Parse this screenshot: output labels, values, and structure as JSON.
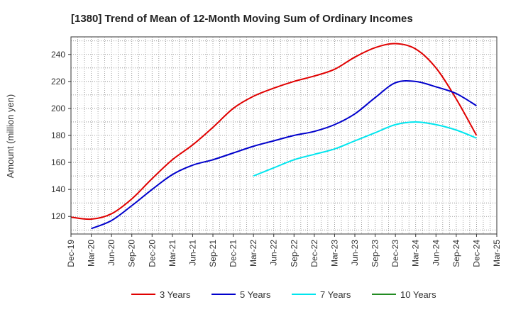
{
  "chart_data": {
    "type": "line",
    "title": "[1380]  Trend of Mean of 12-Month Moving Sum of Ordinary Incomes",
    "xlabel": "",
    "ylabel": "Amount (million yen)",
    "x_ticks": [
      "Dec-19",
      "Mar-20",
      "Jun-20",
      "Sep-20",
      "Dec-20",
      "Mar-21",
      "Jun-21",
      "Sep-21",
      "Dec-21",
      "Mar-22",
      "Jun-22",
      "Sep-22",
      "Dec-22",
      "Mar-23",
      "Jun-23",
      "Sep-23",
      "Dec-23",
      "Mar-24",
      "Jun-24",
      "Sep-24",
      "Dec-24",
      "Mar-25"
    ],
    "y_ticks": [
      120,
      140,
      160,
      180,
      200,
      220,
      240
    ],
    "ylim": [
      107,
      253
    ],
    "grid": true,
    "legend_position": "bottom",
    "series": [
      {
        "name": "3 Years",
        "color": "#e00000",
        "values": [
          119.5,
          118,
          122,
          133,
          148,
          162,
          173,
          186,
          200,
          209,
          215,
          220,
          224,
          229,
          238,
          245,
          248,
          244,
          230,
          207,
          180,
          null
        ]
      },
      {
        "name": "5 Years",
        "color": "#0000cc",
        "values": [
          null,
          111,
          117,
          128,
          140,
          151,
          158,
          162,
          167,
          172,
          176,
          180,
          183,
          188,
          196,
          208,
          219,
          220,
          216,
          211,
          202,
          null
        ]
      },
      {
        "name": "7 Years",
        "color": "#00e5ee",
        "values": [
          null,
          null,
          null,
          null,
          null,
          null,
          null,
          null,
          null,
          150,
          156,
          162,
          166,
          170,
          176,
          182,
          188,
          190,
          188,
          184,
          178,
          null
        ]
      },
      {
        "name": "10 Years",
        "color": "#228b22",
        "values": [
          null,
          null,
          null,
          null,
          null,
          null,
          null,
          null,
          null,
          null,
          null,
          null,
          null,
          null,
          null,
          null,
          null,
          null,
          null,
          null,
          null,
          null
        ]
      }
    ]
  }
}
